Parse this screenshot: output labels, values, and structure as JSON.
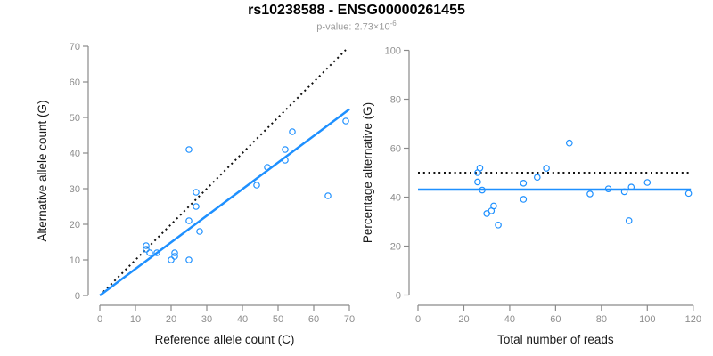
{
  "header": {
    "title": "rs10238588 - ENSG00000261455",
    "p_value_prefix": "p-value: 2.73×10",
    "p_value_exponent": "-6"
  },
  "colors": {
    "accent_blue": "#1E90FF",
    "dotted_black": "#111111",
    "axis_gray": "#8a8a8a",
    "tick_label_gray": "#8d8d8d",
    "subtitle_gray": "#9b9b9b"
  },
  "chart_data": [
    {
      "type": "scatter",
      "name": "allele-count-scatter",
      "xlabel": "Reference allele count (C)",
      "ylabel": "Alternative allele count (G)",
      "xlim": [
        0,
        70
      ],
      "ylim": [
        0,
        70
      ],
      "xticks": [
        0,
        10,
        20,
        30,
        40,
        50,
        60,
        70
      ],
      "yticks": [
        0,
        10,
        20,
        30,
        40,
        50,
        60,
        70
      ],
      "grid": false,
      "points": [
        [
          13,
          14
        ],
        [
          13,
          13
        ],
        [
          14,
          12
        ],
        [
          16,
          12
        ],
        [
          20,
          10
        ],
        [
          21,
          11
        ],
        [
          21,
          12
        ],
        [
          25,
          10
        ],
        [
          25,
          21
        ],
        [
          25,
          41
        ],
        [
          27,
          25
        ],
        [
          27,
          29
        ],
        [
          28,
          18
        ],
        [
          44,
          31
        ],
        [
          47,
          36
        ],
        [
          52,
          38
        ],
        [
          52,
          41
        ],
        [
          54,
          46
        ],
        [
          64,
          28
        ],
        [
          69,
          49
        ]
      ],
      "lines": [
        {
          "name": "identity-line",
          "style": "dotted",
          "color": "#111111",
          "x1": 1,
          "y1": 1,
          "x2": 69,
          "y2": 69
        },
        {
          "name": "fit-line",
          "style": "solid",
          "color": "#1E90FF",
          "x1": 0,
          "y1": 0,
          "x2": 70,
          "y2": 52.3
        }
      ]
    },
    {
      "type": "scatter",
      "name": "percentage-scatter",
      "xlabel": "Total number of reads",
      "ylabel": "Percentage alternative (G)",
      "xlim": [
        0,
        120
      ],
      "ylim": [
        0,
        100
      ],
      "xticks": [
        0,
        20,
        40,
        60,
        80,
        100,
        120
      ],
      "yticks": [
        0,
        20,
        40,
        60,
        80,
        100
      ],
      "grid": false,
      "points": [
        [
          26,
          50
        ],
        [
          26,
          46.2
        ],
        [
          27,
          51.9
        ],
        [
          28,
          42.9
        ],
        [
          30,
          33.3
        ],
        [
          32,
          34.4
        ],
        [
          33,
          36.4
        ],
        [
          35,
          28.6
        ],
        [
          46,
          45.7
        ],
        [
          46,
          39.1
        ],
        [
          52,
          48.1
        ],
        [
          56,
          51.8
        ],
        [
          66,
          62.1
        ],
        [
          75,
          41.3
        ],
        [
          83,
          43.4
        ],
        [
          90,
          42.2
        ],
        [
          92,
          30.4
        ],
        [
          93,
          44.1
        ],
        [
          100,
          46
        ],
        [
          118,
          41.5
        ]
      ],
      "lines": [
        {
          "name": "null-line",
          "style": "dotted",
          "color": "#111111",
          "x1": 0,
          "y1": 50,
          "x2": 118,
          "y2": 50
        },
        {
          "name": "fit-line",
          "style": "solid",
          "color": "#1E90FF",
          "x1": 0,
          "y1": 43.1,
          "x2": 119,
          "y2": 43.1
        }
      ]
    }
  ]
}
